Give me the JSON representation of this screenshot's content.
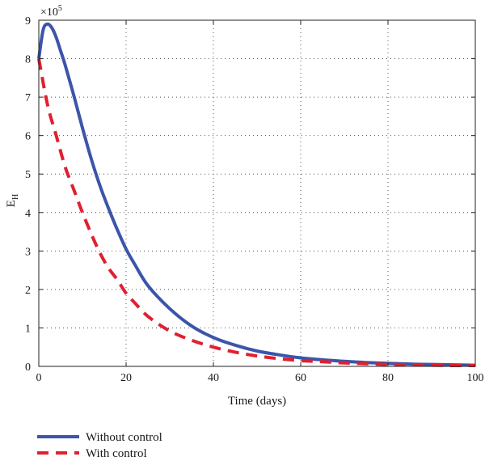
{
  "chart_data": {
    "type": "line",
    "xlabel": "Time (days)",
    "ylabel_main": "E",
    "ylabel_sub": "H",
    "multiplier_base": "×10",
    "multiplier_exp": "5",
    "xlim": [
      0,
      100
    ],
    "ylim": [
      0,
      9
    ],
    "xticks": [
      0,
      20,
      40,
      60,
      80,
      100
    ],
    "yticks": [
      0,
      1,
      2,
      3,
      4,
      5,
      6,
      7,
      8,
      9
    ],
    "grid": true,
    "legend_position": "below-left",
    "series": [
      {
        "name": "Without control",
        "color": "#3c55aa",
        "style": "solid",
        "x": [
          0,
          1,
          2,
          3,
          4,
          5,
          6,
          8,
          10,
          12,
          14,
          16,
          18,
          20,
          22,
          25,
          30,
          35,
          40,
          45,
          50,
          55,
          60,
          65,
          70,
          75,
          80,
          85,
          90,
          95,
          100
        ],
        "y": [
          8.0,
          8.75,
          8.9,
          8.8,
          8.55,
          8.2,
          7.85,
          7.05,
          6.2,
          5.4,
          4.7,
          4.1,
          3.55,
          3.05,
          2.65,
          2.1,
          1.5,
          1.05,
          0.75,
          0.55,
          0.4,
          0.3,
          0.22,
          0.17,
          0.13,
          0.1,
          0.08,
          0.06,
          0.05,
          0.04,
          0.03
        ]
      },
      {
        "name": "With control",
        "color": "#e02030",
        "style": "dashed",
        "x": [
          0,
          2,
          4,
          6,
          8,
          10,
          12,
          14,
          16,
          18,
          20,
          22,
          25,
          30,
          35,
          40,
          45,
          50,
          55,
          60,
          65,
          70,
          75,
          80,
          85,
          90,
          95,
          100
        ],
        "y": [
          8.0,
          6.8,
          6.0,
          5.2,
          4.6,
          4.0,
          3.45,
          2.95,
          2.55,
          2.25,
          1.9,
          1.65,
          1.3,
          0.92,
          0.68,
          0.5,
          0.37,
          0.27,
          0.2,
          0.15,
          0.12,
          0.09,
          0.07,
          0.05,
          0.04,
          0.03,
          0.02,
          0.02
        ]
      }
    ]
  }
}
